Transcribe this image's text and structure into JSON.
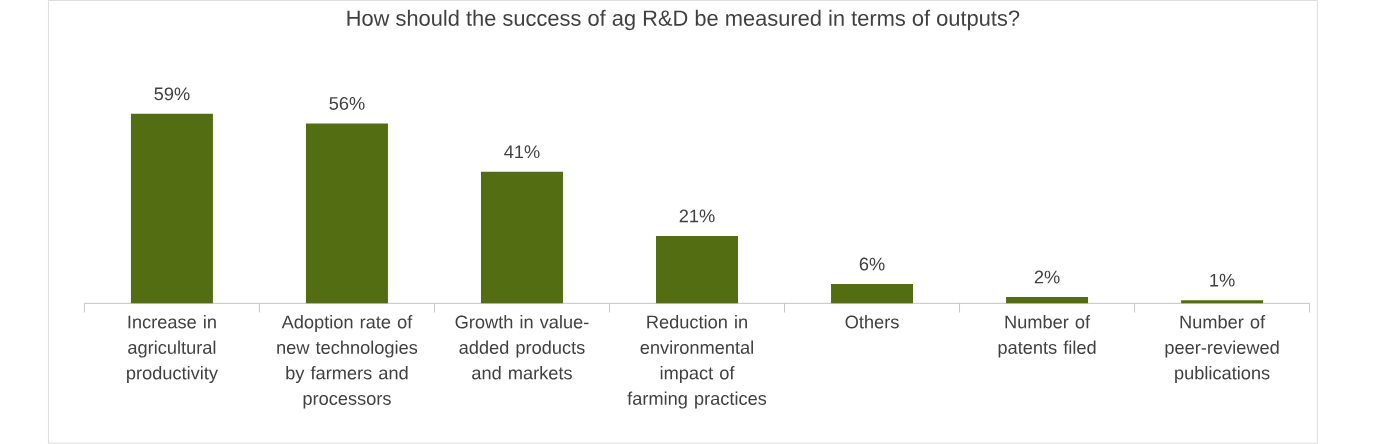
{
  "chart_data": {
    "type": "bar",
    "title": "How should the success of ag R&D be measured in terms of outputs?",
    "categories": [
      "Increase in agricultural productivity",
      "Adoption rate of new technologies by farmers  and processors",
      "Growth in value-added products and markets",
      "Reduction in environmental impact of farming practices",
      "Others",
      "Number of patents filed",
      "Number of peer-reviewed publications"
    ],
    "values": [
      59,
      56,
      41,
      21,
      6,
      2,
      1
    ],
    "value_labels": [
      "59%",
      "56%",
      "41%",
      "21%",
      "6%",
      "2%",
      "1%"
    ],
    "color": "#536e12"
  }
}
